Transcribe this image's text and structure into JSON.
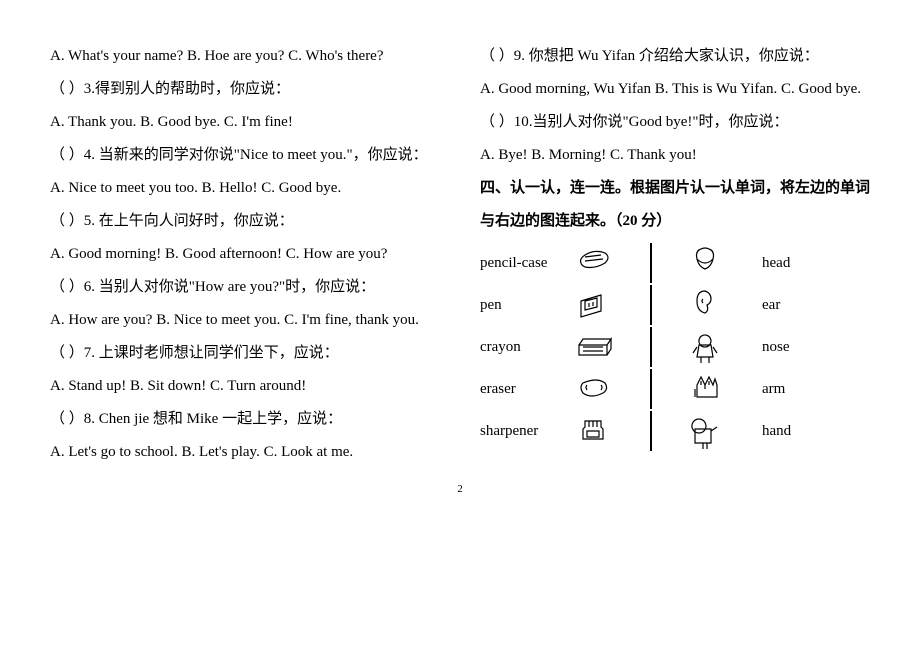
{
  "left": {
    "q2_choices": "A. What's your name?    B. Hoe are you?    C. Who's there?",
    "q3": "（       ）3.得到别人的帮助时，你应说：",
    "q3_choices": "A. Thank you.    B. Good bye.    C. I'm fine!",
    "q4": "（       ）4.  当新来的同学对你说\"Nice to meet you.\"，你应说：",
    "q4_choices": "A. Nice to meet you too.    B. Hello!    C. Good bye.",
    "q5": "（       ）5.  在上午向人问好时，你应说：",
    "q5_choices": "A. Good morning!    B. Good afternoon!    C. How are you?",
    "q6": "（       ）6.  当别人对你说\"How are you?\"时，你应说：",
    "q6_choices": "A. How are you?    B. Nice to meet you.    C. I'm fine, thank you.",
    "q7": "（       ）7.  上课时老师想让同学们坐下，应说：",
    "q7_choices": "A. Stand up!    B. Sit down!    C. Turn around!",
    "q8": "（       ）8. Chen jie  想和 Mike  一起上学，应说：",
    "q8_choices": " A. Let's go to school.     B. Let's play.     C. Look at me."
  },
  "right": {
    "q9": "（       ）9.  你想把  Wu Yifan  介绍给大家认识，你应说：",
    "q9_choices": "A. Good morning, Wu Yifan    B. This is Wu Yifan.    C. Good bye.",
    "q10": "（       ）10.当别人对你说\"Good bye!\"时，你应说：",
    "q10_choices": "A. Bye!    B. Morning!    C. Thank you!",
    "section4": "四、认一认，连一连。根据图片认一认单词，将左边的单词与右边的图连起来。（20 分）"
  },
  "match": [
    {
      "left": "pencil-case",
      "right": "head"
    },
    {
      "left": "pen",
      "right": "ear"
    },
    {
      "left": "crayon",
      "right": "nose"
    },
    {
      "left": "eraser",
      "right": "arm"
    },
    {
      "left": "sharpener",
      "right": "hand"
    }
  ],
  "icons_left": [
    "M6 14 Q4 10 10 6 Q20 0 30 4 Q36 8 30 14 Q20 20 10 18 Q6 16 6 14 Z M10 8 L26 6 M10 12 L28 10",
    "M6 26 L6 10 L26 4 L26 20 Z M6 10 L26 4 M10 10 L22 7 L22 16 L10 19 Z M14 12 L14 16 M18 11 L18 15",
    "M4 12 L32 12 L32 22 L4 22 Z M4 12 L8 6 L36 6 L32 12 M32 12 L36 6 L36 16 L32 22 M8 14 L28 14 M8 18 L28 18",
    "M8 8 Q4 12 8 18 Q16 24 28 18 Q34 14 30 8 Q22 2 8 8 Z M12 10 Q10 12 12 15 M26 10 Q28 12 26 15",
    "M10 4 L26 4 L26 10 L28 12 L28 22 L8 22 L8 12 L10 10 Z M14 4 L14 10 M18 4 L18 10 M22 4 L22 10 M12 14 L24 14 L24 20 L12 20 Z"
  ],
  "icons_right": [
    "M14 4 Q8 6 10 14 Q12 22 18 24 Q24 22 26 14 Q28 6 22 4 Q18 2 14 4 Z M10 14 Q14 18 18 18 Q22 18 26 14",
    "M18 4 Q10 4 10 14 Q10 24 18 26 Q22 24 20 18 Q24 16 24 12 Q24 6 18 4 Z M16 12 Q14 14 16 16",
    "M18 6 A6 6 0 1 1 17.9 6 M12 16 L10 28 L26 28 L24 16 Z M10 18 L6 24 M26 18 L30 24 M14 28 L14 34 M22 28 L22 34",
    "M10 26 L10 14 L14 6 L18 14 L22 6 L26 14 L28 8 L30 14 L30 26 Z M8 18 L8 26 M14 10 L14 14 M18 14 L18 18 M22 10 L22 14",
    "M12 6 A7 7 0 1 1 11.9 6 M8 16 L8 30 L24 30 L24 16 Z M24 18 L30 14 M16 30 L16 36 M20 30 L20 36"
  ],
  "icon_stroke": "#000000",
  "icon_fill": "none",
  "pagenum": "2"
}
